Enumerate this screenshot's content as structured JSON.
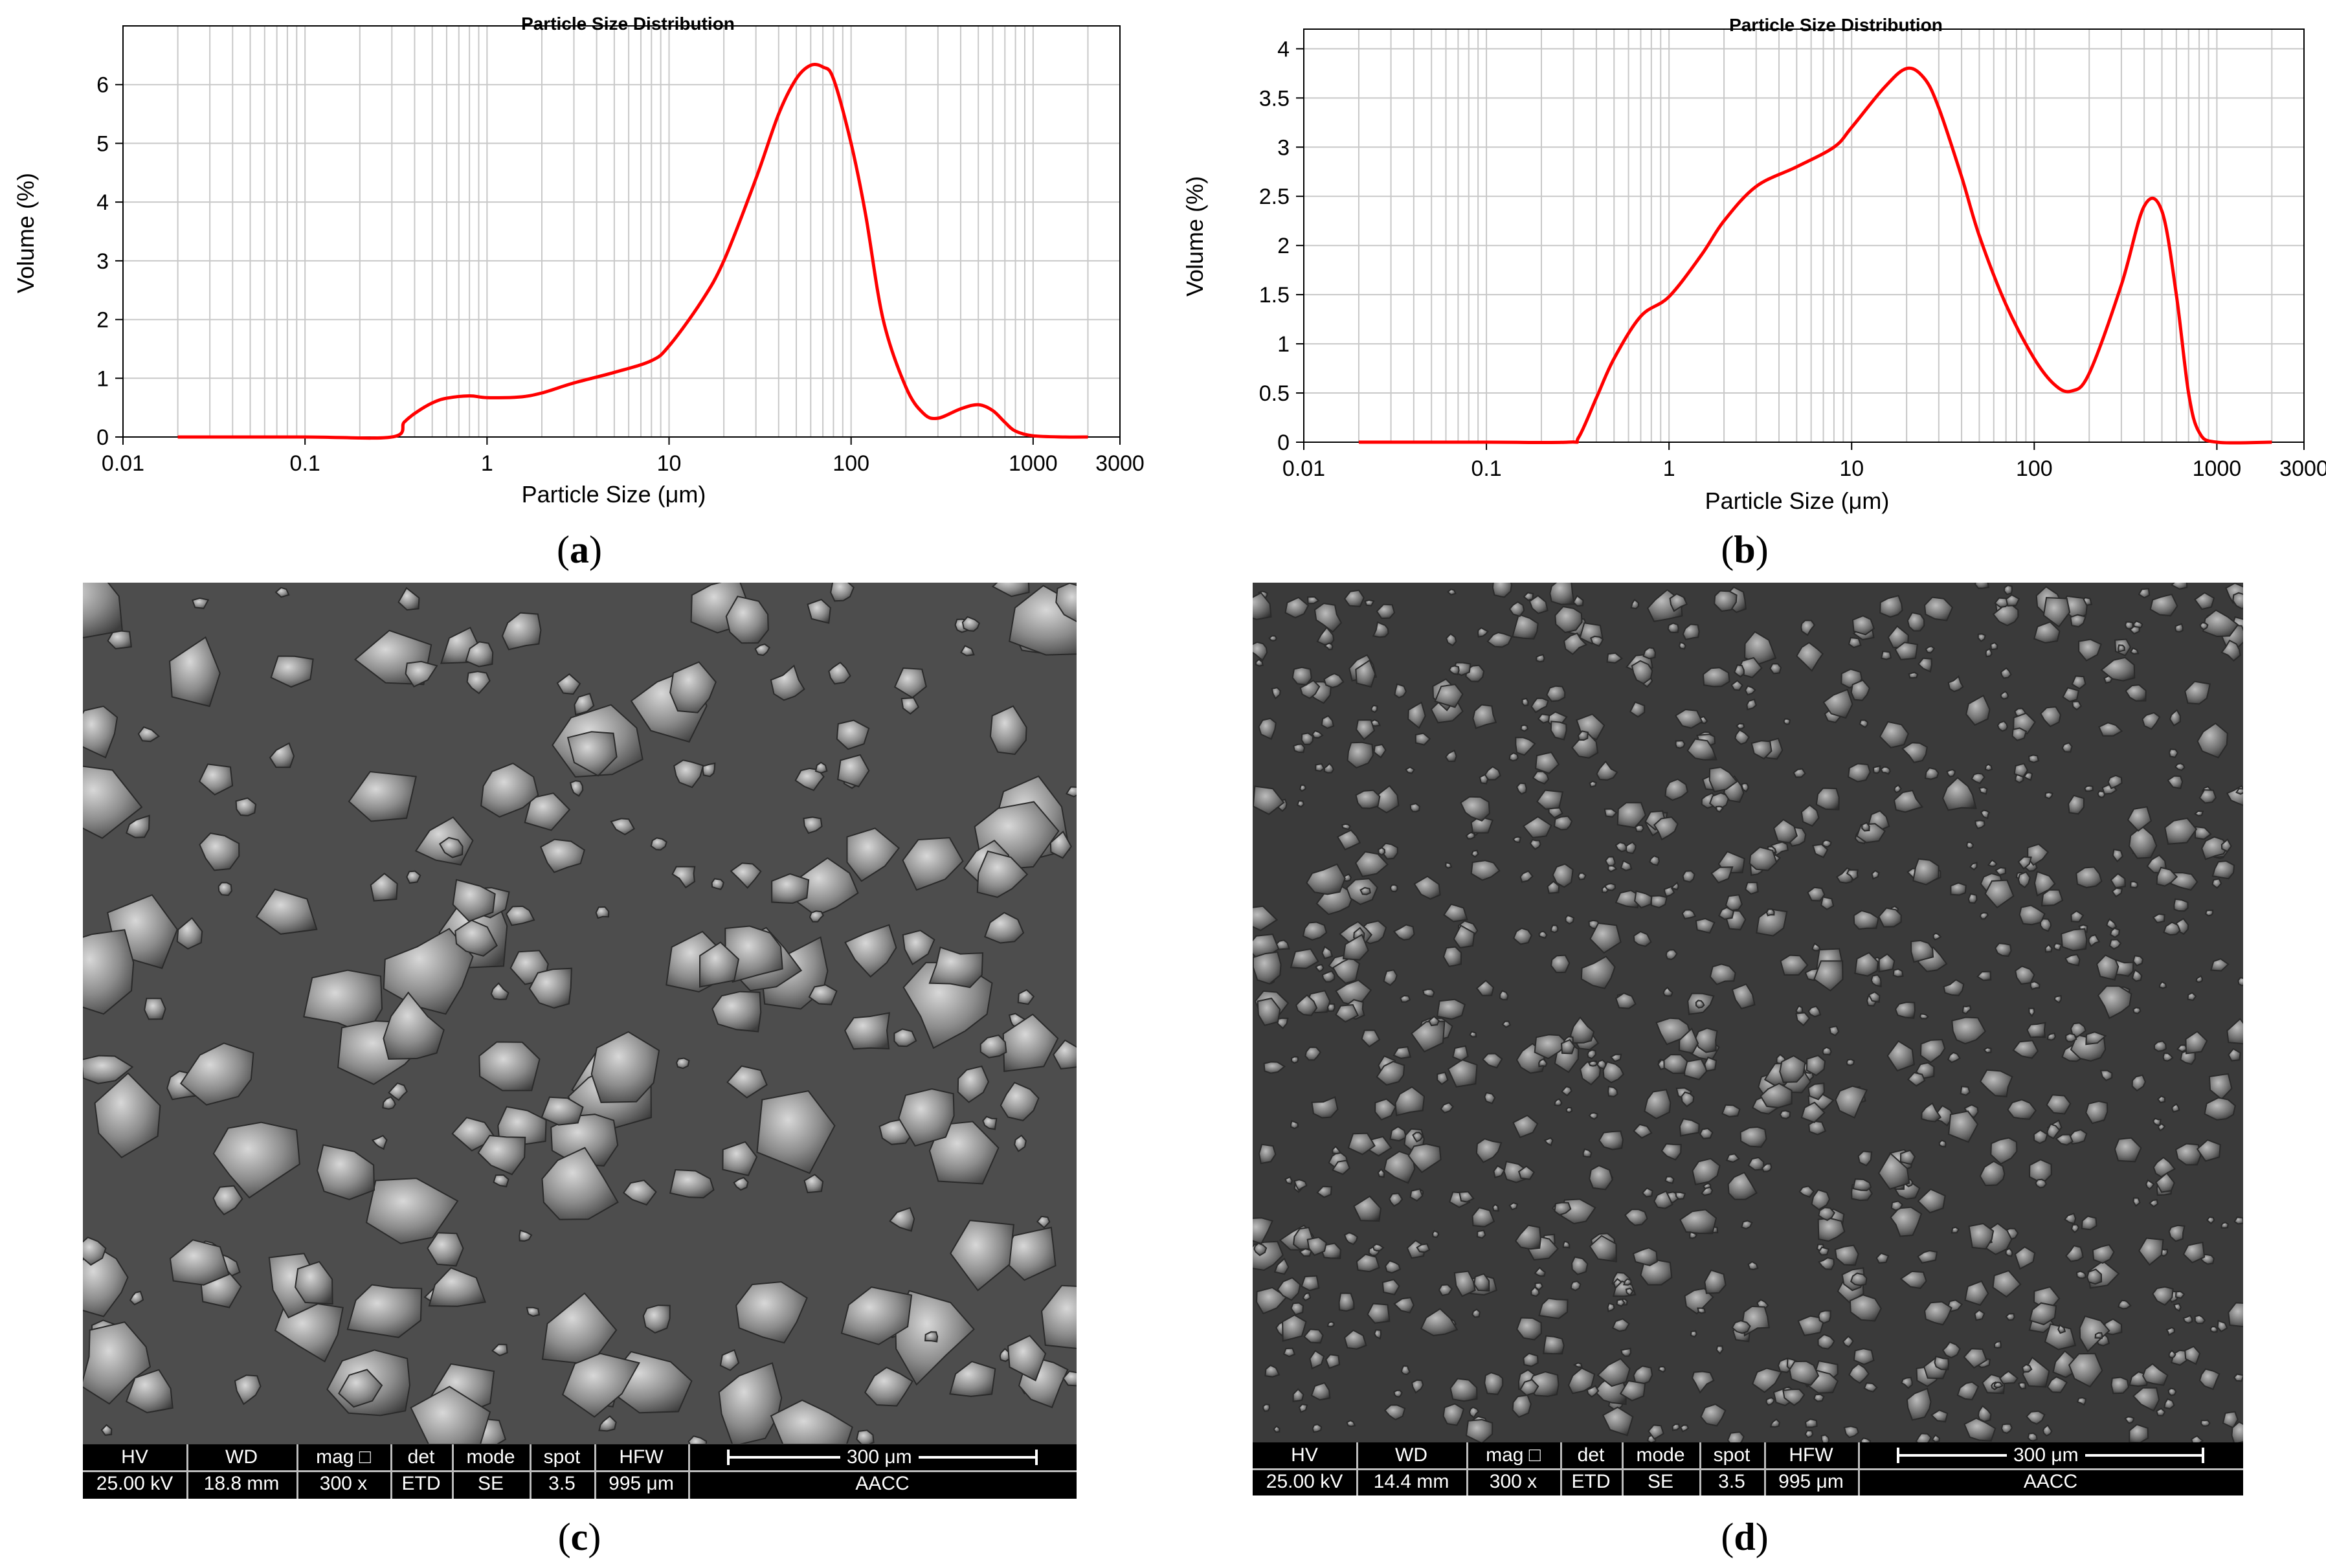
{
  "chart_data": [
    {
      "panel": "a",
      "type": "line",
      "title": "Particle Size Distribution",
      "xlabel": "Particle Size (μm)",
      "ylabel": "Volume (%)",
      "xscale": "log",
      "xlim": [
        0.01,
        3000
      ],
      "ylim": [
        0,
        7
      ],
      "xticks": [
        "0.01",
        "0.1",
        "1",
        "10",
        "100",
        "1000",
        "3000"
      ],
      "yticks": [
        "0",
        "1",
        "2",
        "3",
        "4",
        "5",
        "6"
      ],
      "grid": true,
      "color": "#ff0000",
      "x": [
        0.02,
        0.1,
        0.3,
        0.35,
        0.4,
        0.5,
        0.6,
        0.8,
        1,
        1.5,
        2,
        3,
        5,
        8,
        10,
        15,
        20,
        30,
        40,
        50,
        60,
        70,
        80,
        100,
        120,
        150,
        200,
        250,
        300,
        400,
        500,
        600,
        700,
        800,
        1000,
        1500,
        2000
      ],
      "y": [
        0,
        0,
        0,
        0.25,
        0.4,
        0.58,
        0.66,
        0.7,
        0.67,
        0.68,
        0.75,
        0.92,
        1.1,
        1.3,
        1.55,
        2.3,
        3.0,
        4.4,
        5.5,
        6.1,
        6.33,
        6.3,
        6.1,
        5.0,
        3.8,
        2.0,
        0.85,
        0.4,
        0.32,
        0.48,
        0.55,
        0.45,
        0.25,
        0.1,
        0.02,
        0,
        0
      ]
    },
    {
      "panel": "b",
      "type": "line",
      "title": "Particle Size Distribution",
      "xlabel": "Particle Size (μm)",
      "ylabel": "Volume (%)",
      "xscale": "log",
      "xlim": [
        0.01,
        3000
      ],
      "ylim": [
        0,
        4.2
      ],
      "xticks": [
        "0.01",
        "0.1",
        "1",
        "10",
        "100",
        "1000",
        "3000"
      ],
      "yticks": [
        "0",
        "0.5",
        "1",
        "1.5",
        "2",
        "2.5",
        "3",
        "3.5",
        "4"
      ],
      "grid": true,
      "color": "#ff0000",
      "x": [
        0.02,
        0.1,
        0.28,
        0.32,
        0.4,
        0.5,
        0.7,
        1,
        1.5,
        2,
        3,
        5,
        8,
        10,
        15,
        20,
        25,
        30,
        40,
        50,
        70,
        100,
        130,
        160,
        200,
        300,
        400,
        500,
        600,
        700,
        800,
        1000,
        2000
      ],
      "y": [
        0,
        0,
        0,
        0.05,
        0.45,
        0.85,
        1.28,
        1.48,
        1.9,
        2.25,
        2.6,
        2.8,
        3.0,
        3.2,
        3.6,
        3.8,
        3.7,
        3.4,
        2.7,
        2.1,
        1.4,
        0.85,
        0.58,
        0.52,
        0.7,
        1.6,
        2.4,
        2.35,
        1.5,
        0.5,
        0.1,
        0,
        0
      ]
    }
  ],
  "captions": {
    "a": "a",
    "b": "b",
    "c": "c",
    "d": "d"
  },
  "sem": [
    {
      "panel": "c",
      "headers": [
        "HV",
        "WD",
        "mag",
        "det",
        "mode",
        "spot",
        "HFW"
      ],
      "values": [
        "25.00 kV",
        "18.8 mm",
        "300 x",
        "ETD",
        "SE",
        "3.5",
        "995 μm"
      ],
      "scale_bar": "300 μm",
      "facility": "AACC"
    },
    {
      "panel": "d",
      "headers": [
        "HV",
        "WD",
        "mag",
        "det",
        "mode",
        "spot",
        "HFW"
      ],
      "values": [
        "25.00 kV",
        "14.4 mm",
        "300 x",
        "ETD",
        "SE",
        "3.5",
        "995 μm"
      ],
      "scale_bar": "300 μm",
      "facility": "AACC"
    }
  ]
}
